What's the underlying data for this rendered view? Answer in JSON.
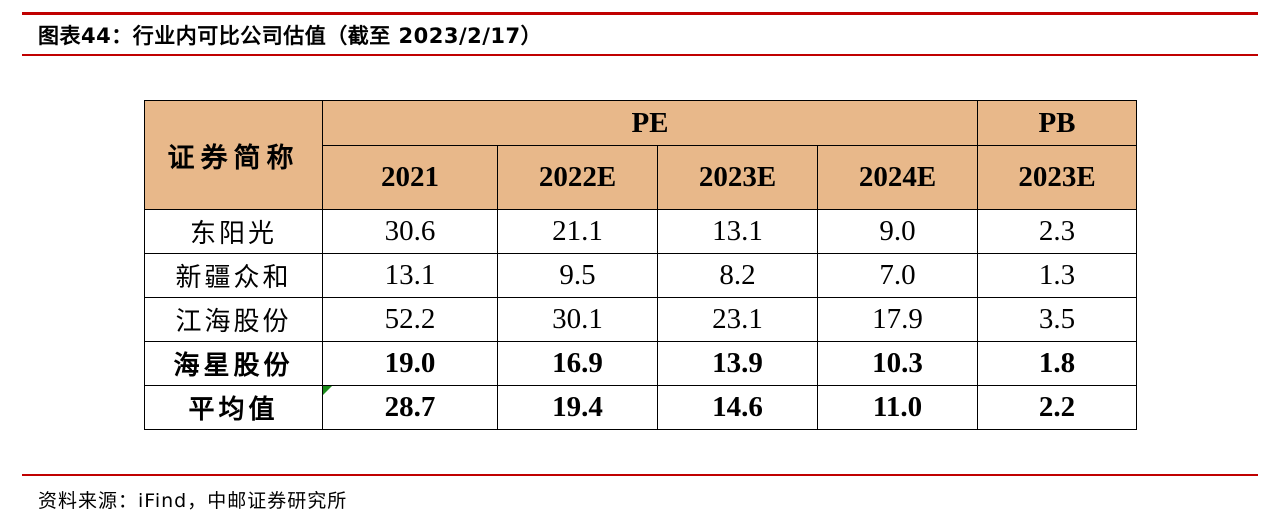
{
  "title": "图表44：行业内可比公司估值（截至 2023/2/17）",
  "table": {
    "name_header": "证券简称",
    "group_pe": "PE",
    "group_pb": "PB",
    "years": [
      "2021",
      "2022E",
      "2023E",
      "2024E",
      "2023E"
    ],
    "rows": [
      {
        "name": "东阳光",
        "values": [
          "30.6",
          "21.1",
          "13.1",
          "9.0",
          "2.3"
        ]
      },
      {
        "name": "新疆众和",
        "values": [
          "13.1",
          "9.5",
          "8.2",
          "7.0",
          "1.3"
        ]
      },
      {
        "name": "江海股份",
        "values": [
          "52.2",
          "30.1",
          "23.1",
          "17.9",
          "3.5"
        ]
      },
      {
        "name": "海星股份",
        "values": [
          "19.0",
          "16.9",
          "13.9",
          "10.3",
          "1.8"
        ]
      },
      {
        "name": "平均值",
        "values": [
          "28.7",
          "19.4",
          "14.6",
          "11.0",
          "2.2"
        ]
      }
    ]
  },
  "source": "资料来源：iFind，中邮证券研究所",
  "colors": {
    "accent_rule": "#c00000",
    "header_fill": "#e8b88a",
    "cell_marker": "#1a8c1a"
  }
}
